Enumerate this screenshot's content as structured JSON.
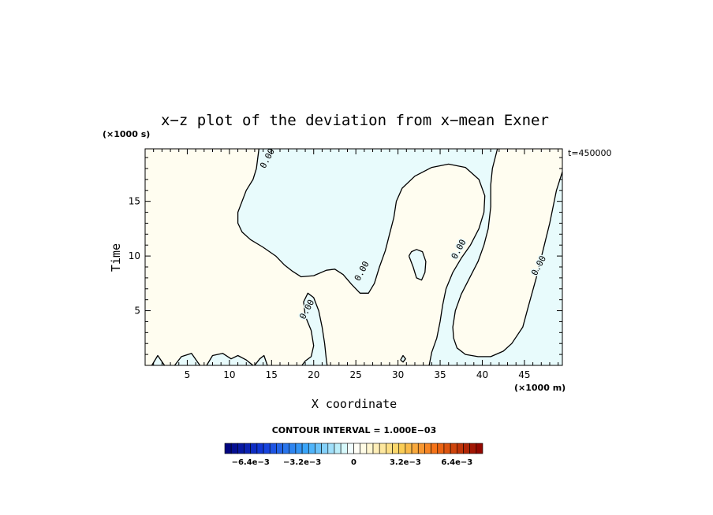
{
  "chart_data": {
    "type": "contour",
    "title": "x−z plot of the deviation from x−mean Exner",
    "xlabel": "X coordinate",
    "ylabel": "Time",
    "x_unit": "(×1000 m)",
    "y_unit": "(×1000 s)",
    "time_label": "t=450000",
    "xlim": [
      0,
      49.5
    ],
    "ylim": [
      0,
      19.8
    ],
    "x_ticks": [
      5,
      10,
      15,
      20,
      25,
      30,
      35,
      40,
      45
    ],
    "y_ticks": [
      5,
      10,
      15
    ],
    "contour_label": "0.00",
    "contour_interval_text": "CONTOUR INTERVAL = 1.000E−03",
    "colorbar": {
      "range": [
        -0.008,
        0.008
      ],
      "tick_labels": [
        "−6.4e−3",
        "−3.2e−3",
        "0",
        "3.2e−3",
        "6.4e−3"
      ],
      "tick_values": [
        -0.0064,
        -0.0032,
        0,
        0.0032,
        0.0064
      ],
      "n_bins": 40
    },
    "fill_colors": {
      "positive": "#fffdf0",
      "negative": "#e8fbfc"
    },
    "negative_regions": [
      [
        [
          13.5,
          19.8
        ],
        [
          13.2,
          18
        ],
        [
          12.8,
          17
        ],
        [
          12.0,
          16
        ],
        [
          11.5,
          15
        ],
        [
          11.0,
          14
        ],
        [
          11.0,
          13
        ],
        [
          11.5,
          12.2
        ],
        [
          12.5,
          11.5
        ],
        [
          14.0,
          10.8
        ],
        [
          15.5,
          10
        ],
        [
          16.5,
          9.2
        ],
        [
          17.5,
          8.6
        ],
        [
          18.5,
          8.1
        ],
        [
          20.0,
          8.2
        ],
        [
          21.5,
          8.7
        ],
        [
          22.5,
          8.8
        ],
        [
          23.5,
          8.3
        ],
        [
          24.5,
          7.4
        ],
        [
          25.5,
          6.6
        ],
        [
          26.5,
          6.6
        ],
        [
          27.2,
          7.5
        ],
        [
          27.8,
          9.0
        ],
        [
          28.5,
          10.5
        ],
        [
          29.0,
          12.0
        ],
        [
          29.5,
          13.5
        ],
        [
          29.8,
          15.0
        ],
        [
          30.5,
          16.2
        ],
        [
          32.0,
          17.3
        ],
        [
          34.0,
          18.1
        ],
        [
          36.0,
          18.4
        ],
        [
          38.0,
          18.1
        ],
        [
          39.6,
          17.0
        ],
        [
          40.3,
          15.5
        ],
        [
          40.2,
          14.0
        ],
        [
          39.6,
          12.5
        ],
        [
          38.6,
          11.0
        ],
        [
          37.5,
          9.8
        ],
        [
          36.5,
          8.5
        ],
        [
          35.7,
          7.0
        ],
        [
          35.3,
          5.5
        ],
        [
          35.0,
          4.0
        ],
        [
          34.6,
          2.5
        ],
        [
          34.0,
          1.2
        ],
        [
          33.7,
          0
        ],
        [
          49.5,
          0
        ],
        [
          49.5,
          17.7
        ],
        [
          48.8,
          16.0
        ],
        [
          48.0,
          13.0
        ],
        [
          47.2,
          10.5
        ],
        [
          46.4,
          8.0
        ],
        [
          45.5,
          5.5
        ],
        [
          44.8,
          3.5
        ],
        [
          43.5,
          2.0
        ],
        [
          42.5,
          1.3
        ],
        [
          41.0,
          0.8
        ],
        [
          39.5,
          0.8
        ],
        [
          38.0,
          1.0
        ],
        [
          37.0,
          1.6
        ],
        [
          36.6,
          2.5
        ],
        [
          36.5,
          3.5
        ],
        [
          36.8,
          5.0
        ],
        [
          37.5,
          6.5
        ],
        [
          38.5,
          8.0
        ],
        [
          39.5,
          9.5
        ],
        [
          40.2,
          11.0
        ],
        [
          40.7,
          12.5
        ],
        [
          41.0,
          14.5
        ],
        [
          41.0,
          16.5
        ],
        [
          41.2,
          18.0
        ],
        [
          41.8,
          19.8
        ]
      ],
      [
        [
          18.6,
          0
        ],
        [
          19.0,
          0.4
        ],
        [
          19.7,
          0.8
        ],
        [
          20.0,
          1.8
        ],
        [
          19.7,
          3.2
        ],
        [
          19.0,
          4.5
        ],
        [
          18.8,
          5.8
        ],
        [
          19.3,
          6.6
        ],
        [
          20.0,
          6.2
        ],
        [
          20.6,
          5.0
        ],
        [
          21.0,
          3.5
        ],
        [
          21.3,
          2.0
        ],
        [
          21.5,
          0.5
        ],
        [
          21.6,
          0
        ]
      ],
      [
        [
          31.3,
          10.0
        ],
        [
          31.8,
          9.0
        ],
        [
          32.2,
          8.0
        ],
        [
          32.8,
          7.8
        ],
        [
          33.2,
          8.5
        ],
        [
          33.3,
          9.5
        ],
        [
          32.9,
          10.4
        ],
        [
          32.2,
          10.6
        ],
        [
          31.6,
          10.4
        ]
      ],
      [
        [
          0.8,
          0
        ],
        [
          1.5,
          0.9
        ],
        [
          2.3,
          0
        ],
        [
          3.5,
          0
        ],
        [
          4.3,
          0.8
        ],
        [
          5.5,
          1.1
        ],
        [
          6.5,
          0
        ]
      ],
      [
        [
          7.3,
          0
        ],
        [
          8.0,
          0.9
        ],
        [
          9.2,
          1.1
        ],
        [
          10.2,
          0.6
        ],
        [
          11.0,
          0.9
        ],
        [
          12.0,
          0.5
        ],
        [
          12.8,
          0
        ]
      ],
      [
        [
          13.0,
          0
        ],
        [
          13.6,
          0.6
        ],
        [
          14.1,
          0.9
        ],
        [
          14.5,
          0
        ]
      ],
      [
        [
          30.3,
          0.5
        ],
        [
          30.6,
          0.9
        ],
        [
          30.9,
          0.6
        ],
        [
          30.6,
          0.3
        ]
      ]
    ],
    "zero_contour_label_positions": [
      [
        14.8,
        18.8
      ],
      [
        26.0,
        8.5
      ],
      [
        37.5,
        10.5
      ],
      [
        47.0,
        9.0
      ],
      [
        19.5,
        5.0
      ]
    ]
  }
}
